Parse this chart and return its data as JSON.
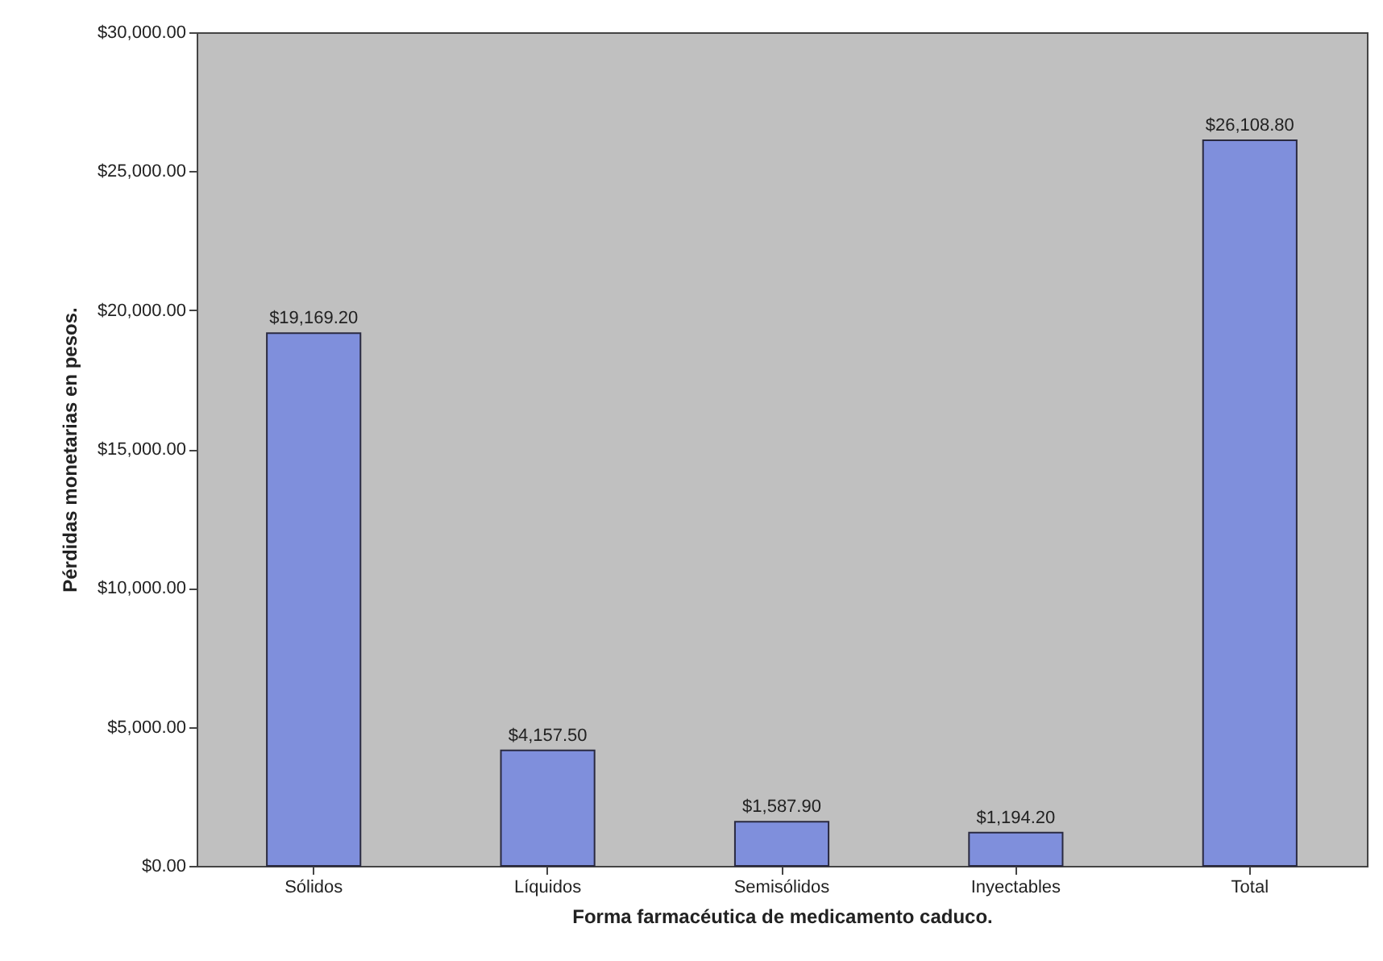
{
  "chart_data": {
    "type": "bar",
    "xlabel": "Forma farmacéutica de medicamento caduco.",
    "ylabel": "Pérdidas monetarias en pesos.",
    "categories": [
      "Sólidos",
      "Líquidos",
      "Semisólidos",
      "Inyectables",
      "Total"
    ],
    "values": [
      19169.2,
      4157.5,
      1587.9,
      1194.2,
      26108.8
    ],
    "value_labels": [
      "$19,169.20",
      "$4,157.50",
      "$1,587.90",
      "$1,194.20",
      "$26,108.80"
    ],
    "color": "#7f8fdc",
    "ylim": [
      0,
      30000
    ],
    "yticks": [
      {
        "value": 0,
        "label": "$0.00"
      },
      {
        "value": 5000,
        "label": "$5,000.00"
      },
      {
        "value": 10000,
        "label": "$10,000.00"
      },
      {
        "value": 15000,
        "label": "$15,000.00"
      },
      {
        "value": 20000,
        "label": "$20,000.00"
      },
      {
        "value": 25000,
        "label": "$25,000.00"
      },
      {
        "value": 30000,
        "label": "$30,000.00"
      }
    ],
    "grid": false
  }
}
